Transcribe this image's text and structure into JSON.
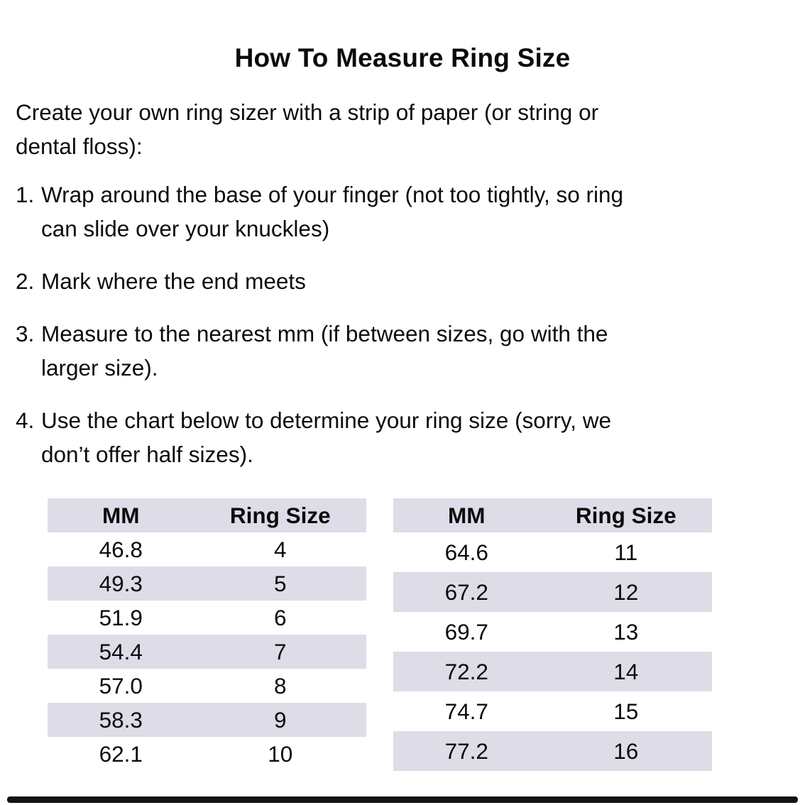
{
  "title": "How To Measure Ring Size",
  "intro": {
    "lines": [
      "Create your own ring sizer with a strip of paper (or string or",
      "dental floss):"
    ]
  },
  "steps": [
    {
      "number": "1.",
      "lines": [
        "Wrap around the base of your finger (not too tightly, so ring",
        "can slide over your knuckles)"
      ]
    },
    {
      "number": "2.",
      "lines": [
        "Mark where the end meets"
      ]
    },
    {
      "number": "3.",
      "lines": [
        "Measure to the nearest mm (if between sizes, go with the",
        "larger size)."
      ]
    },
    {
      "number": "4.",
      "lines": [
        "Use the chart below to determine your ring size (sorry, we",
        "don’t offer half sizes)."
      ]
    }
  ],
  "size_chart": {
    "stripe_color": "#dedce7",
    "text_color": "#0b0b0b",
    "tables": [
      {
        "headers": [
          "MM",
          "Ring Size"
        ],
        "rows": [
          [
            "46.8",
            "4"
          ],
          [
            "49.3",
            "5"
          ],
          [
            "51.9",
            "6"
          ],
          [
            "54.4",
            "7"
          ],
          [
            "57.0",
            "8"
          ],
          [
            "58.3",
            "9"
          ],
          [
            "62.1",
            "10"
          ]
        ]
      },
      {
        "headers": [
          "MM",
          "Ring Size"
        ],
        "rows": [
          [
            "64.6",
            "11"
          ],
          [
            "67.2",
            "12"
          ],
          [
            "69.7",
            "13"
          ],
          [
            "72.2",
            "14"
          ],
          [
            "74.7",
            "15"
          ],
          [
            "77.2",
            "16"
          ]
        ]
      }
    ]
  },
  "footer": {
    "bar_color": "#131313"
  }
}
